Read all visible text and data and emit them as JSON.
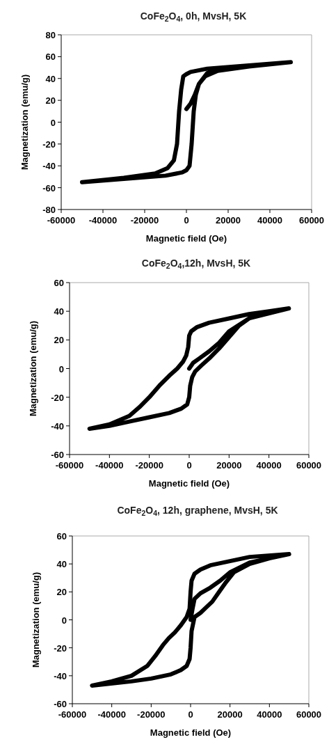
{
  "chart_data": [
    {
      "type": "line",
      "title": "CoFe$_{2}$O$_{4}$, 0h, MvsH, 5K",
      "xlabel": "Magnetic field (Oe)",
      "ylabel": "Magnetization (emu/g)",
      "xlim": [
        -60000,
        60000
      ],
      "xticks": [
        -60000,
        -40000,
        -20000,
        0,
        20000,
        40000,
        60000
      ],
      "ylim": [
        -80,
        80
      ],
      "yticks": [
        -80,
        -60,
        -40,
        -20,
        0,
        20,
        40,
        60,
        80
      ],
      "grid": false,
      "series": [
        {
          "color": "#000000",
          "x": [
            0,
            2000,
            4000,
            6000,
            10000,
            20000,
            50000,
            30000,
            10000,
            2000,
            0,
            -1500,
            -2500,
            -3500,
            -4500,
            -6000,
            -9000,
            -15000,
            -30000,
            -50000,
            -30000,
            -10000,
            -2000,
            0,
            1500,
            2500,
            3500,
            4500,
            6000,
            9000,
            15000,
            30000,
            50000
          ],
          "values": [
            12,
            17,
            25,
            35,
            45,
            50,
            55,
            52,
            49,
            46,
            44,
            42,
            30,
            10,
            -20,
            -35,
            -42,
            -47,
            -51,
            -55,
            -52,
            -49,
            -46,
            -44,
            -40,
            -20,
            10,
            25,
            35,
            42,
            47,
            51,
            55
          ]
        }
      ]
    },
    {
      "type": "line",
      "title": "CoFe$_{2}$O$_{4}$,12h, MvsH, 5K",
      "xlabel": "Magnetic field (Oe)",
      "ylabel": "Magnetization (emu/g)",
      "xlim": [
        -60000,
        60000
      ],
      "xticks": [
        -60000,
        -40000,
        -20000,
        0,
        20000,
        40000,
        60000
      ],
      "ylim": [
        -60,
        60
      ],
      "yticks": [
        -60,
        -40,
        -20,
        0,
        20,
        40,
        60
      ],
      "grid": false,
      "series": [
        {
          "color": "#000000",
          "x": [
            0,
            2000,
            5000,
            10000,
            15000,
            20000,
            30000,
            50000,
            40000,
            30000,
            20000,
            10000,
            4000,
            1000,
            0,
            -500,
            -1500,
            -3000,
            -6000,
            -10000,
            -15000,
            -20000,
            -25000,
            -30000,
            -40000,
            -50000,
            -40000,
            -30000,
            -20000,
            -10000,
            -4000,
            -1000,
            0,
            500,
            1500,
            3000,
            6000,
            10000,
            15000,
            20000,
            25000,
            30000,
            40000,
            50000
          ],
          "values": [
            0,
            4,
            7,
            12,
            18,
            26,
            35,
            42,
            40,
            38,
            35,
            32,
            29,
            26,
            23,
            15,
            9,
            5,
            0,
            -5,
            -12,
            -20,
            -27,
            -33,
            -39,
            -42,
            -40,
            -37,
            -34,
            -31,
            -28,
            -25,
            -20,
            -12,
            -6,
            -2,
            2,
            7,
            14,
            22,
            30,
            35,
            40,
            42
          ]
        }
      ]
    },
    {
      "type": "line",
      "title": "CoFe$_{2}$O$_{4}$, 12h, graphene, MvsH, 5K",
      "xlabel": "Magnetic field (Oe)",
      "ylabel": "Magnetization (emu/g)",
      "xlim": [
        -60000,
        60000
      ],
      "xticks": [
        -60000,
        -40000,
        -20000,
        0,
        20000,
        40000,
        60000
      ],
      "ylim": [
        -60,
        60
      ],
      "yticks": [
        -60,
        -40,
        -20,
        0,
        20,
        40,
        60
      ],
      "grid": false,
      "series": [
        {
          "color": "#000000",
          "x": [
            0,
            1000,
            2000,
            5000,
            10000,
            15000,
            20000,
            30000,
            50000,
            30000,
            20000,
            10000,
            5000,
            2000,
            500,
            0,
            -500,
            -2000,
            -5000,
            -8000,
            -11000,
            -14000,
            -18000,
            -22000,
            -30000,
            -40000,
            -50000,
            -30000,
            -20000,
            -10000,
            -5000,
            -2000,
            -500,
            0,
            500,
            2000,
            5000,
            8000,
            11000,
            14000,
            18000,
            22000,
            30000,
            40000,
            50000
          ],
          "values": [
            0,
            8,
            15,
            19,
            23,
            28,
            34,
            41,
            47,
            45,
            42,
            39,
            36,
            33,
            28,
            20,
            8,
            2,
            -4,
            -9,
            -13,
            -18,
            -26,
            -33,
            -40,
            -44,
            -47,
            -44,
            -42,
            -39,
            -36,
            -33,
            -28,
            -20,
            -8,
            2,
            5,
            9,
            13,
            19,
            27,
            34,
            40,
            44,
            47
          ]
        }
      ]
    }
  ]
}
